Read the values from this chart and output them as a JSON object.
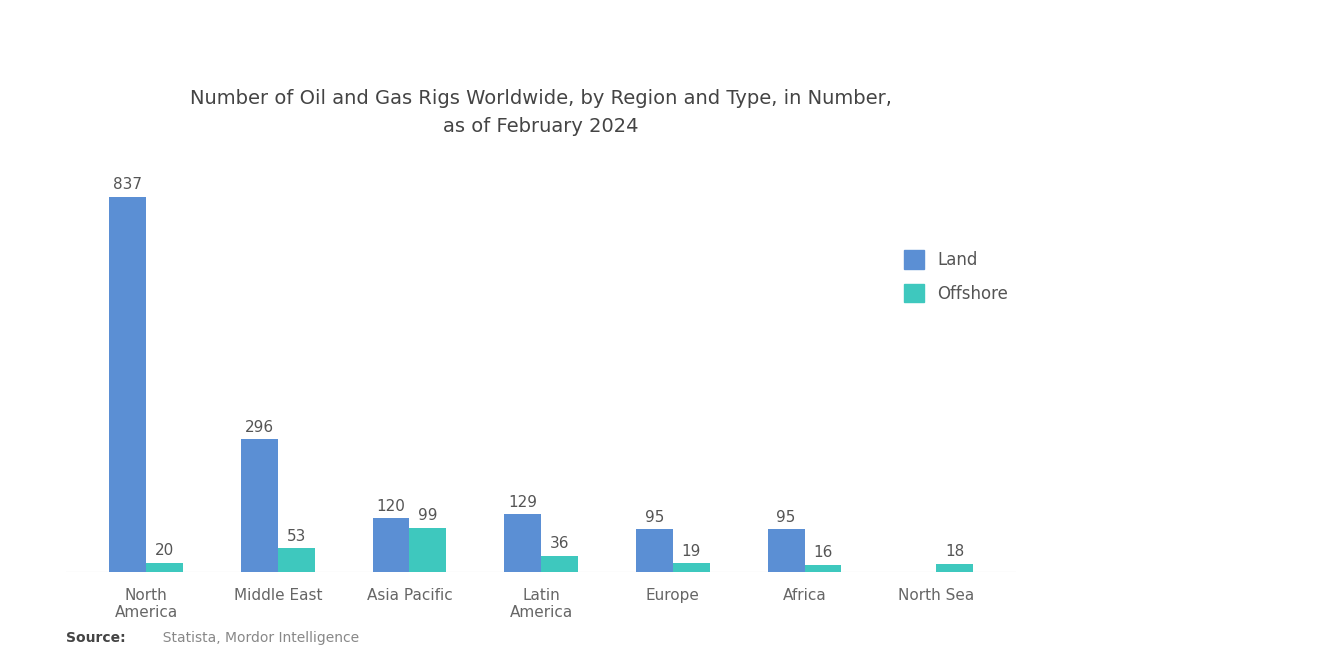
{
  "title": "Number of Oil and Gas Rigs Worldwide, by Region and Type, in Number,\nas of February 2024",
  "title_fontsize": 14,
  "categories": [
    "North\nAmerica",
    "Middle East",
    "Asia Pacific",
    "Latin\nAmerica",
    "Europe",
    "Africa",
    "North Sea"
  ],
  "land_values": [
    837,
    296,
    120,
    129,
    95,
    95,
    0
  ],
  "offshore_values": [
    20,
    53,
    99,
    36,
    19,
    16,
    18
  ],
  "land_color": "#5b8fd4",
  "offshore_color": "#3ec8be",
  "background_color": "#ffffff",
  "ylim": [
    0,
    920
  ],
  "bar_width": 0.28,
  "legend_labels": [
    "Land",
    "Offshore"
  ],
  "source_bold": "Source:",
  "source_rest": "  Statista, Mordor Intelligence",
  "label_fontsize": 11,
  "tick_fontsize": 11,
  "value_fontsize": 11
}
